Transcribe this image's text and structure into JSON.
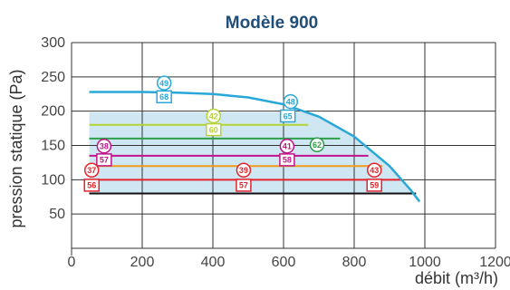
{
  "chart_data": {
    "type": "line",
    "title": "Modèle 900",
    "xlabel": "débit (m³/h)",
    "ylabel": "pression statique (Pa)",
    "xlim": [
      0,
      1200
    ],
    "ylim": [
      0,
      300
    ],
    "x_ticks": [
      "0",
      "200",
      "400",
      "600",
      "800",
      "1000",
      "1200"
    ],
    "y_ticks": [
      "50",
      "100",
      "150",
      "200",
      "250",
      "300"
    ],
    "grid": true,
    "fan_curve": {
      "color": "#29a8d8",
      "points": [
        [
          50,
          228
        ],
        [
          200,
          228
        ],
        [
          300,
          227
        ],
        [
          400,
          225
        ],
        [
          500,
          220
        ],
        [
          600,
          210
        ],
        [
          700,
          192
        ],
        [
          800,
          163
        ],
        [
          900,
          120
        ],
        [
          960,
          85
        ],
        [
          985,
          68
        ]
      ]
    },
    "operating_lines": [
      {
        "y": 180,
        "x_start": 50,
        "x_end": 670,
        "color": "#b5d334"
      },
      {
        "y": 160,
        "x_start": 50,
        "x_end": 760,
        "color": "#2e9e4a"
      },
      {
        "y": 135,
        "x_start": 50,
        "x_end": 840,
        "color": "#c0138a"
      },
      {
        "y": 120,
        "x_start": 50,
        "x_end": 880,
        "color": "#f29a1e"
      },
      {
        "y": 100,
        "x_start": 50,
        "x_end": 935,
        "color": "#e3242b"
      },
      {
        "y": 80,
        "x_start": 50,
        "x_end": 975,
        "color": "#111111"
      }
    ],
    "annotations": [
      {
        "text": "49",
        "x": 262,
        "y": 241,
        "shape": "circle",
        "color": "#29a8d8"
      },
      {
        "text": "68",
        "x": 262,
        "y": 221,
        "shape": "square",
        "color": "#29a8d8"
      },
      {
        "text": "48",
        "x": 620,
        "y": 214,
        "shape": "circle",
        "color": "#29a8d8"
      },
      {
        "text": "65",
        "x": 612,
        "y": 193,
        "shape": "square",
        "color": "#29a8d8"
      },
      {
        "text": "42",
        "x": 402,
        "y": 193,
        "shape": "circle",
        "color": "#b5d334"
      },
      {
        "text": "60",
        "x": 402,
        "y": 173,
        "shape": "square",
        "color": "#b5d334"
      },
      {
        "text": "62",
        "x": 695,
        "y": 151,
        "shape": "circle",
        "color": "#2e9e4a"
      },
      {
        "text": "38",
        "x": 92,
        "y": 149,
        "shape": "circle",
        "color": "#c0138a"
      },
      {
        "text": "57",
        "x": 92,
        "y": 129,
        "shape": "square",
        "color": "#c0138a"
      },
      {
        "text": "41",
        "x": 610,
        "y": 149,
        "shape": "circle",
        "color": "#c0138a"
      },
      {
        "text": "58",
        "x": 610,
        "y": 129,
        "shape": "square",
        "color": "#c0138a"
      },
      {
        "text": "37",
        "x": 57,
        "y": 114,
        "shape": "circle",
        "color": "#e3242b"
      },
      {
        "text": "56",
        "x": 57,
        "y": 92,
        "shape": "square",
        "color": "#e3242b"
      },
      {
        "text": "39",
        "x": 487,
        "y": 114,
        "shape": "circle",
        "color": "#e3242b"
      },
      {
        "text": "57",
        "x": 487,
        "y": 92,
        "shape": "square",
        "color": "#e3242b"
      },
      {
        "text": "43",
        "x": 857,
        "y": 114,
        "shape": "circle",
        "color": "#e3242b"
      },
      {
        "text": "59",
        "x": 857,
        "y": 92,
        "shape": "square",
        "color": "#e3242b"
      }
    ],
    "fill_color": "#cfe6f3"
  }
}
